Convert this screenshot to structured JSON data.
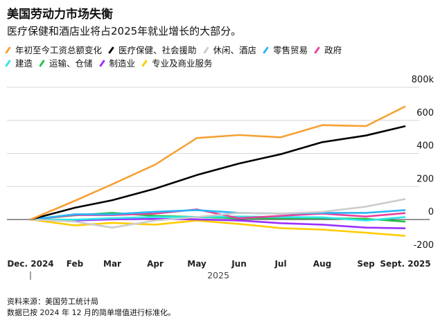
{
  "title": "美国劳动力市场失衡",
  "subtitle": "医疗保健和酒店业将占2025年就业增长的大部分。",
  "footer": {
    "source": "资料来源：美国劳工统计局",
    "note": "数据已按 2024 年 12 月的简单增值进行标准化。"
  },
  "chart_data": {
    "type": "line",
    "title": "美国劳动力市场失衡",
    "x": [
      "Dec. 2024",
      "Feb",
      "Mar",
      "Apr",
      "May",
      "Jun",
      "Jul",
      "Aug",
      "Sep",
      "Sept. 2025"
    ],
    "x_tick_labels": [
      "Dec. 2024",
      "Feb",
      "Mar",
      "Apr",
      "May",
      "Jun",
      "Jul",
      "Aug",
      "Sep",
      "Sept. 2025"
    ],
    "x_year_label": "2025",
    "y_ticks": [
      800,
      600,
      400,
      200,
      0,
      -200
    ],
    "y_tick_labels": [
      "800k",
      "600",
      "400",
      "200",
      "0",
      "-200"
    ],
    "ylim": [
      -200,
      800
    ],
    "grid": true,
    "legend_placement": "top",
    "series": [
      {
        "name": "年初至今工资总额变化",
        "color": "#f7a033",
        "values": [
          0,
          113,
          213,
          332,
          493,
          511,
          497,
          571,
          565,
          685
        ]
      },
      {
        "name": "医疗保健、社会援助",
        "color": "#000000",
        "values": [
          0,
          71,
          117,
          187,
          269,
          339,
          395,
          468,
          508,
          565
        ]
      },
      {
        "name": "休闲、酒店",
        "color": "#cccccc",
        "values": [
          0,
          -13,
          -49,
          -6,
          15,
          40,
          36,
          46,
          78,
          124
        ]
      },
      {
        "name": "零售贸易",
        "color": "#29b6f6",
        "values": [
          0,
          32,
          32,
          47,
          57,
          40,
          36,
          40,
          40,
          57
        ]
      },
      {
        "name": "政府",
        "color": "#e8419c",
        "values": [
          0,
          27,
          27,
          36,
          61,
          8,
          22,
          36,
          18,
          39
        ]
      },
      {
        "name": "建造",
        "color": "#2ee6e6",
        "values": [
          0,
          -1,
          8,
          15,
          15,
          18,
          15,
          13,
          -6,
          15
        ]
      },
      {
        "name": "运输、仓储",
        "color": "#22c04a",
        "values": [
          0,
          25,
          40,
          22,
          15,
          8,
          8,
          8,
          4,
          -13
        ]
      },
      {
        "name": "制造业",
        "color": "#9b30ff",
        "values": [
          0,
          -6,
          1,
          4,
          1,
          -6,
          -22,
          -31,
          -49,
          -53
        ]
      },
      {
        "name": "专业及商业服务",
        "color": "#ffcc00",
        "values": [
          0,
          -36,
          -20,
          -31,
          -6,
          -27,
          -52,
          -61,
          -80,
          -99
        ]
      }
    ]
  }
}
